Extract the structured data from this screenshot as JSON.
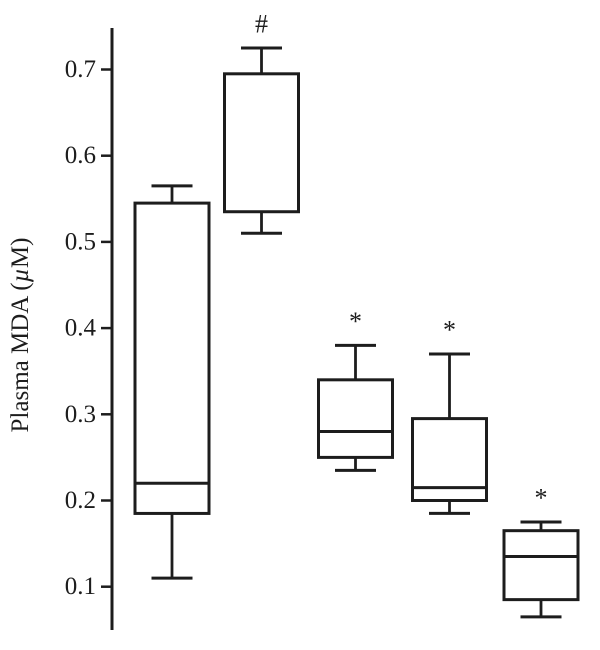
{
  "figure": {
    "background": "#ffffff",
    "line_color": "#1d1d1d"
  },
  "chart_data": {
    "type": "boxplot",
    "title": "",
    "ylabel": "Plasma MDA (µM)",
    "ylabel_parts": {
      "prefix": "Plasma MDA (",
      "mu": "µ",
      "suffix": "M)"
    },
    "xlabel": "",
    "ylim": [
      0.04,
      0.76
    ],
    "yticks": [
      0.7,
      0.6,
      0.5,
      0.4,
      0.3,
      0.2,
      0.1
    ],
    "ytick_labels": [
      "0.7",
      "0.6",
      "0.5",
      "0.4",
      "0.3",
      "0.2",
      "0.1"
    ],
    "grid": false,
    "legend": "none",
    "boxes": [
      {
        "group": 1,
        "whisker_low": 0.11,
        "q1": 0.185,
        "median": 0.22,
        "q3": 0.545,
        "whisker_high": 0.565,
        "annotation": ""
      },
      {
        "group": 2,
        "whisker_low": 0.51,
        "q1": 0.535,
        "median": null,
        "q3": 0.695,
        "whisker_high": 0.725,
        "annotation": "#"
      },
      {
        "group": 3,
        "whisker_low": 0.235,
        "q1": 0.25,
        "median": 0.28,
        "q3": 0.34,
        "whisker_high": 0.38,
        "annotation": "*"
      },
      {
        "group": 4,
        "whisker_low": 0.185,
        "q1": 0.2,
        "median": 0.215,
        "q3": 0.295,
        "whisker_high": 0.37,
        "annotation": "*"
      },
      {
        "group": 5,
        "whisker_low": 0.065,
        "q1": 0.085,
        "median": 0.135,
        "q3": 0.165,
        "whisker_high": 0.175,
        "annotation": "*"
      }
    ]
  }
}
